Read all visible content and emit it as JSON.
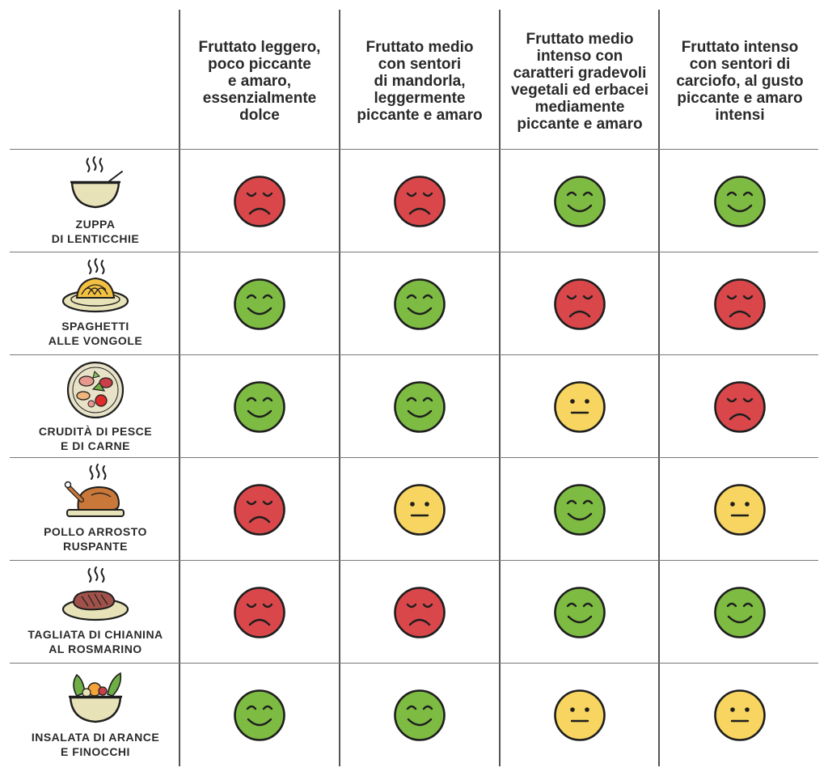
{
  "columns": [
    "Fruttato leggero,\npoco piccante\ne amaro,\nessenzialmente\ndolce",
    "Fruttato medio\ncon sentori\ndi mandorla,\nleggermente\npiccante e amaro",
    "Fruttato medio\nintenso con\ncaratteri gradevoli\nvegetali ed erbacei\nmediamente\npiccante e amaro",
    "Fruttato intenso\ncon sentori di\ncarciofo, al gusto\npiccante e amaro\nintensi"
  ],
  "rows": [
    {
      "name": "ZUPPA\nDI LENTICCHIE",
      "icon": "soup-bowl-icon",
      "ratings": [
        "sad",
        "sad",
        "happy",
        "happy"
      ]
    },
    {
      "name": "SPAGHETTI\nALLE VONGOLE",
      "icon": "spaghetti-plate-icon",
      "ratings": [
        "happy",
        "happy",
        "sad",
        "sad"
      ]
    },
    {
      "name": "CRUDITÀ DI PESCE\nE DI CARNE",
      "icon": "raw-platter-icon",
      "ratings": [
        "happy",
        "happy",
        "neutral",
        "sad"
      ]
    },
    {
      "name": "POLLO ARROSTO\nRUSPANTE",
      "icon": "roast-chicken-icon",
      "ratings": [
        "sad",
        "neutral",
        "happy",
        "neutral"
      ]
    },
    {
      "name": "TAGLIATA DI CHIANINA\nAL ROSMARINO",
      "icon": "steak-plate-icon",
      "ratings": [
        "sad",
        "sad",
        "happy",
        "happy"
      ]
    },
    {
      "name": "INSALATA DI ARANCE\nE FINOCCHI",
      "icon": "salad-bowl-icon",
      "ratings": [
        "happy",
        "happy",
        "neutral",
        "neutral"
      ]
    }
  ],
  "colors": {
    "happy": "#7dbb42",
    "sad": "#d9474b",
    "neutral": "#f7d560",
    "outline": "#1e1e1e"
  }
}
